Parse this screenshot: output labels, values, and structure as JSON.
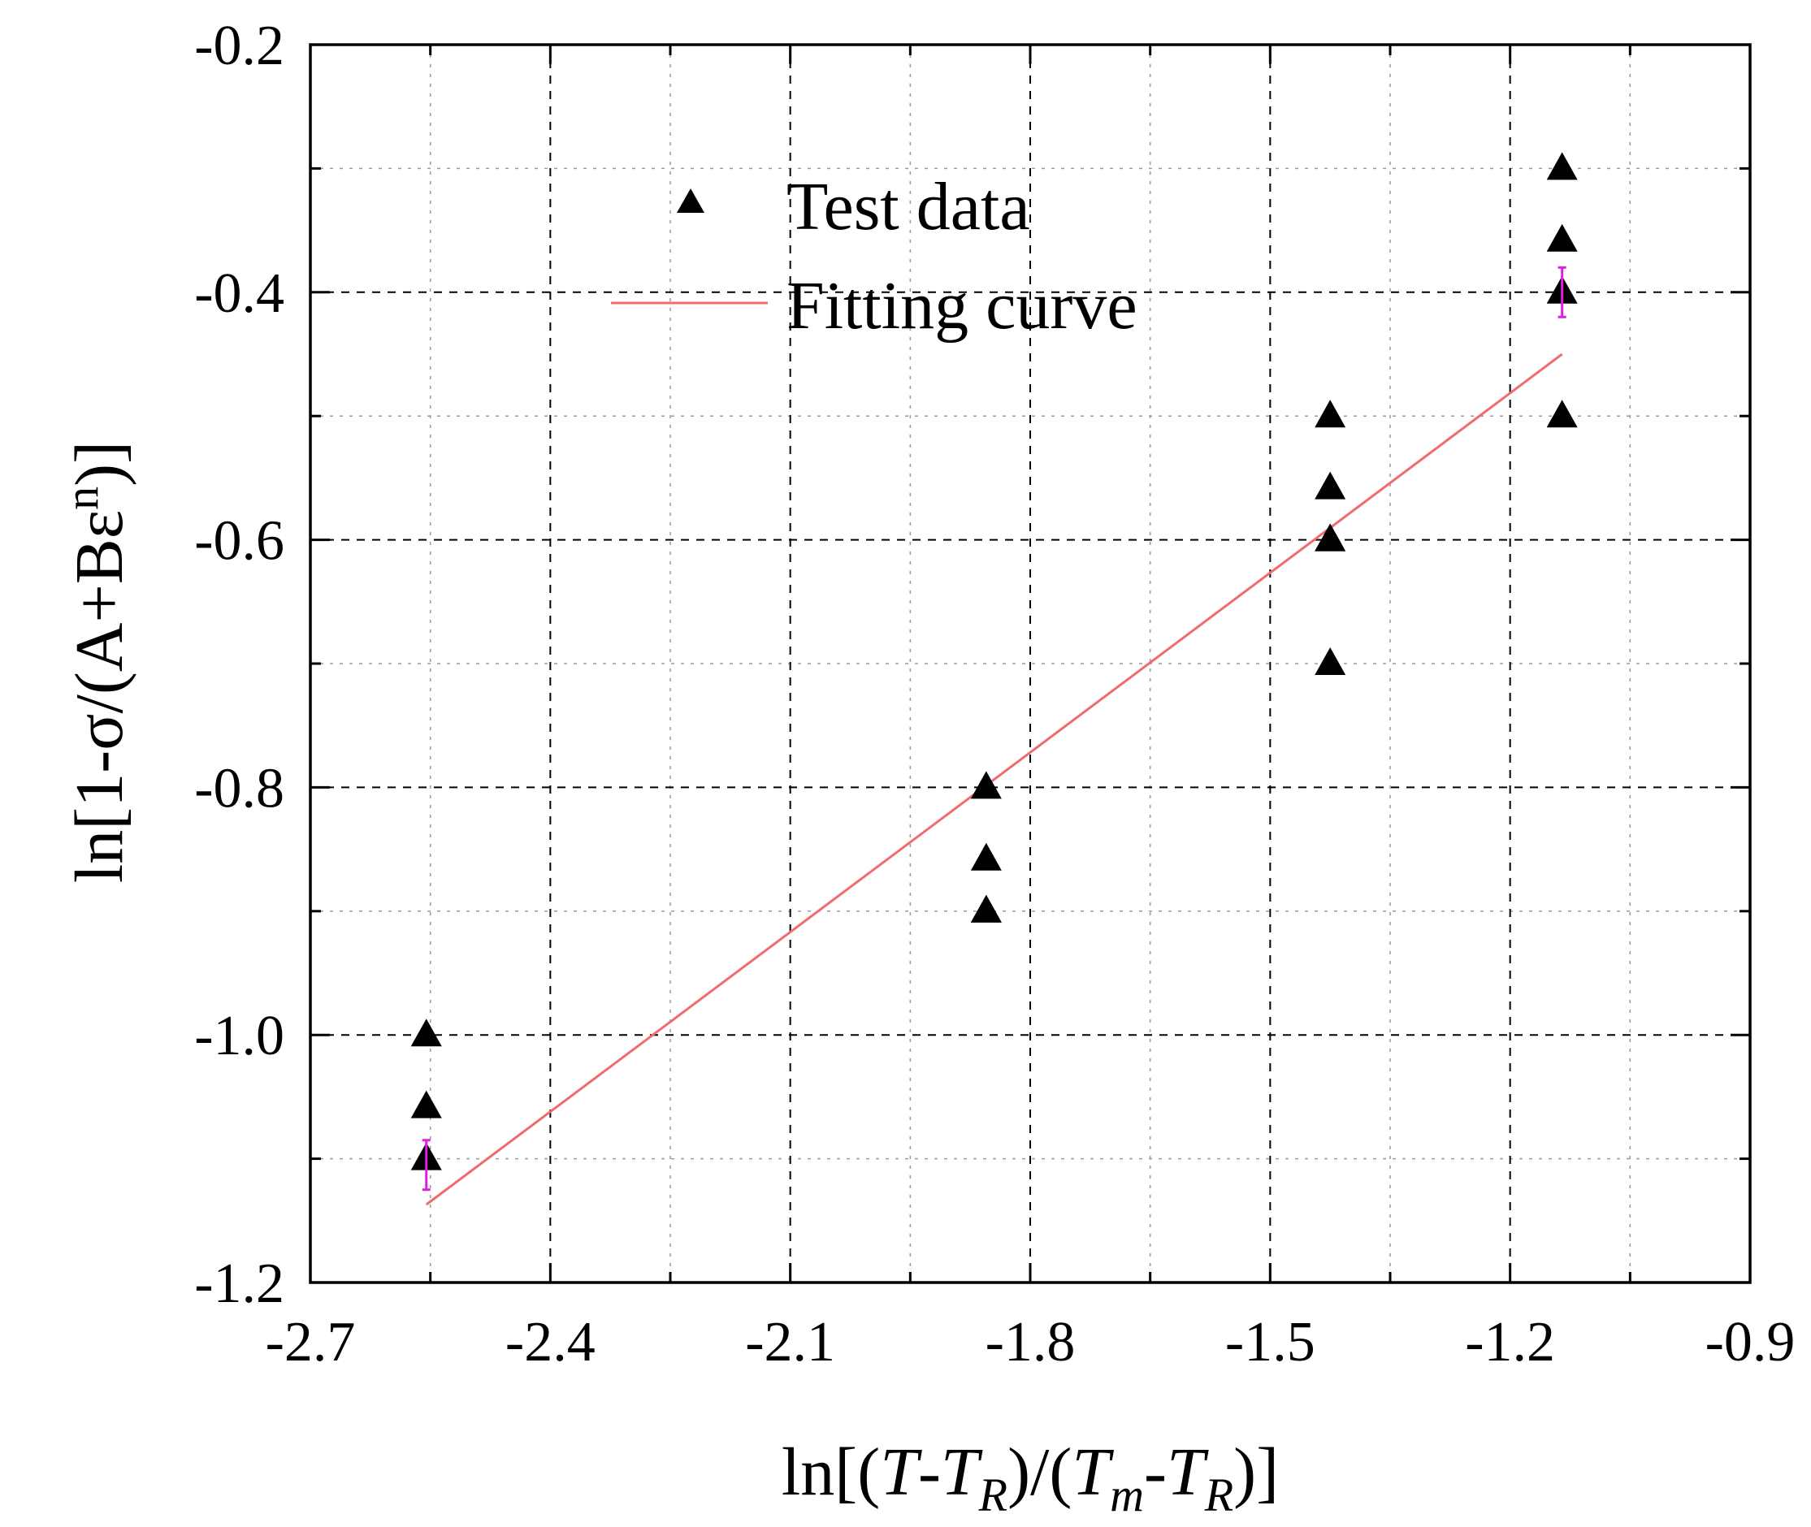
{
  "colors": {
    "background": "#ffffff",
    "marker": "#000000",
    "fit_line": "#f06b6b",
    "error_bar": "#e020e0"
  },
  "chart_data": {
    "type": "scatter",
    "title": "",
    "xlabel_parts": {
      "prefix": "ln[(",
      "T1": "T",
      "minus1": "-",
      "TR1": "T",
      "R1": "R",
      "mid": ")/(",
      "Tm": "T",
      "m": "m",
      "minus2": "-",
      "TR2": "T",
      "R2": "R",
      "suffix": ")]"
    },
    "ylabel_parts": {
      "base": "ln[1-σ/(A+Bε",
      "sup": "n",
      "end": ")]"
    },
    "xlim": [
      -2.7,
      -0.9
    ],
    "ylim": [
      -1.2,
      -0.2
    ],
    "x_ticks": [
      -2.7,
      -2.4,
      -2.1,
      -1.8,
      -1.5,
      -1.2,
      -0.9
    ],
    "x_tick_labels": [
      "-2.7",
      "-2.4",
      "-2.1",
      "-1.8",
      "-1.5",
      "-1.2",
      "-0.9"
    ],
    "y_ticks": [
      -1.2,
      -1.0,
      -0.8,
      -0.6,
      -0.4,
      -0.2
    ],
    "y_tick_labels": [
      "-1.2",
      "-1.0",
      "-0.8",
      "-0.6",
      "-0.4",
      "-0.2"
    ],
    "grid": true,
    "legend_position": "top-left",
    "series": [
      {
        "name": "Test data",
        "kind": "scatter",
        "marker": "triangle",
        "points": [
          {
            "x": -2.555,
            "y": -1.0
          },
          {
            "x": -2.555,
            "y": -1.058
          },
          {
            "x": -2.555,
            "y": -1.1
          },
          {
            "x": -1.855,
            "y": -0.8
          },
          {
            "x": -1.855,
            "y": -0.858
          },
          {
            "x": -1.855,
            "y": -0.9
          },
          {
            "x": -1.855,
            "y": -0.9
          },
          {
            "x": -1.425,
            "y": -0.5
          },
          {
            "x": -1.425,
            "y": -0.558
          },
          {
            "x": -1.425,
            "y": -0.6
          },
          {
            "x": -1.425,
            "y": -0.6
          },
          {
            "x": -1.425,
            "y": -0.7
          },
          {
            "x": -1.135,
            "y": -0.3
          },
          {
            "x": -1.135,
            "y": -0.358
          },
          {
            "x": -1.135,
            "y": -0.4
          },
          {
            "x": -1.135,
            "y": -0.5
          }
        ],
        "error_bars": [
          {
            "x": -2.555,
            "y": -1.1,
            "low": -1.125,
            "high": -1.085
          },
          {
            "x": -1.135,
            "y": -0.4,
            "low": -0.42,
            "high": -0.38
          }
        ]
      },
      {
        "name": "Fitting curve",
        "kind": "line",
        "x": [
          -2.555,
          -1.135
        ],
        "y": [
          -1.137,
          -0.45
        ]
      }
    ]
  }
}
